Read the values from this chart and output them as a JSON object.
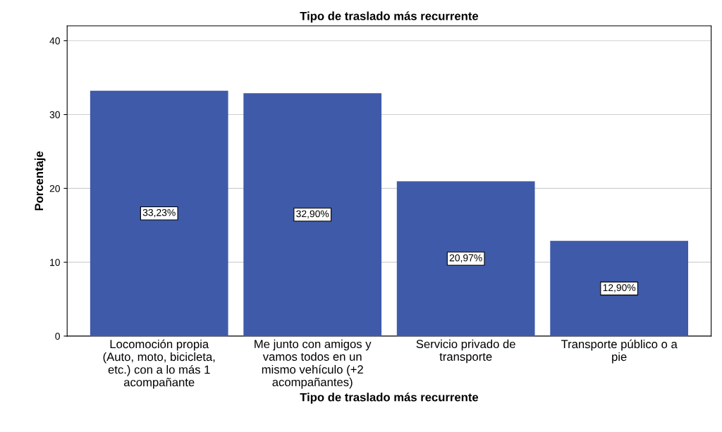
{
  "chart_data": {
    "type": "bar",
    "title": "Tipo de traslado más recurrente",
    "xlabel": "Tipo de traslado más recurrente",
    "ylabel": "Porcentaje",
    "categories": [
      "Locomoción propia\n(Auto, moto, bicicleta,\netc.) con a lo más 1\nacompañante",
      "Me junto con amigos y\nvamos todos en un\nmismo vehículo (+2\nacompañantes)",
      "Servicio privado de\ntransporte",
      "Transporte público o a\npie"
    ],
    "values": [
      33.23,
      32.9,
      20.97,
      12.9
    ],
    "value_labels": [
      "33,23%",
      "32,90%",
      "20,97%",
      "12,90%"
    ],
    "color": "#3f5aa8",
    "ylim": [
      0,
      42
    ],
    "yticks": [
      0,
      10,
      20,
      30,
      40
    ],
    "grid": "y"
  }
}
